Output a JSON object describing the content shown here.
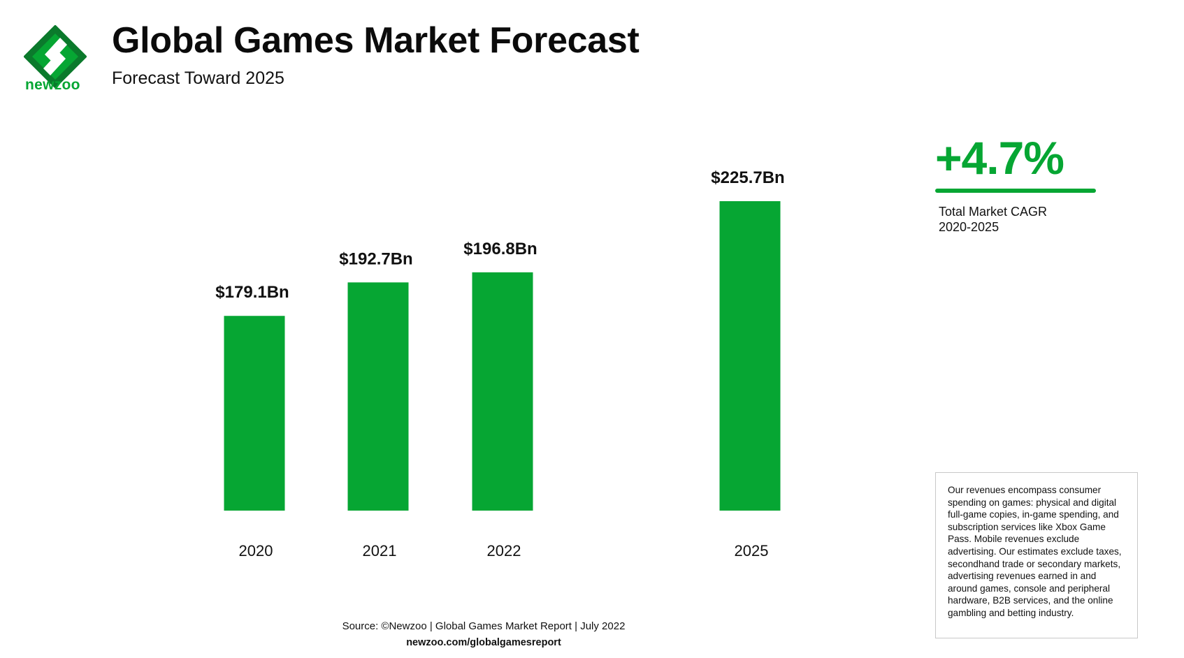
{
  "brand": {
    "name": "newzoo",
    "accent_color": "#06A633",
    "dark_color": "#0B7A2C",
    "logo_icon": "newzoo-logo-icon"
  },
  "header": {
    "title": "Global Games Market Forecast",
    "subtitle": "Forecast Toward 2025"
  },
  "chart_data": {
    "type": "bar",
    "categories": [
      "2020",
      "2021",
      "2022",
      "2025"
    ],
    "values": [
      179.1,
      192.7,
      196.8,
      225.7
    ],
    "data_labels": [
      "$179.1Bn",
      "$192.7Bn",
      "$196.8Bn",
      "$225.7Bn"
    ],
    "bar_color": "#06A633",
    "ylim": [
      0,
      250
    ],
    "grid": false,
    "axes_visible": false
  },
  "cagr": {
    "value": "+4.7%",
    "label": "Total Market CAGR",
    "period": "2020-2025"
  },
  "note": "Our revenues encompass consumer spending on games: physical and digital full-game copies, in-game spending, and subscription services like Xbox Game Pass. Mobile revenues exclude advertising. Our estimates exclude taxes, secondhand trade or secondary markets, advertising revenues earned in and around games, console and peripheral hardware, B2B services, and the online gambling and betting industry.",
  "footer": {
    "source": "Source: ©Newzoo | Global Games Market Report | July 2022",
    "url": "newzoo.com/globalgamesreport"
  }
}
